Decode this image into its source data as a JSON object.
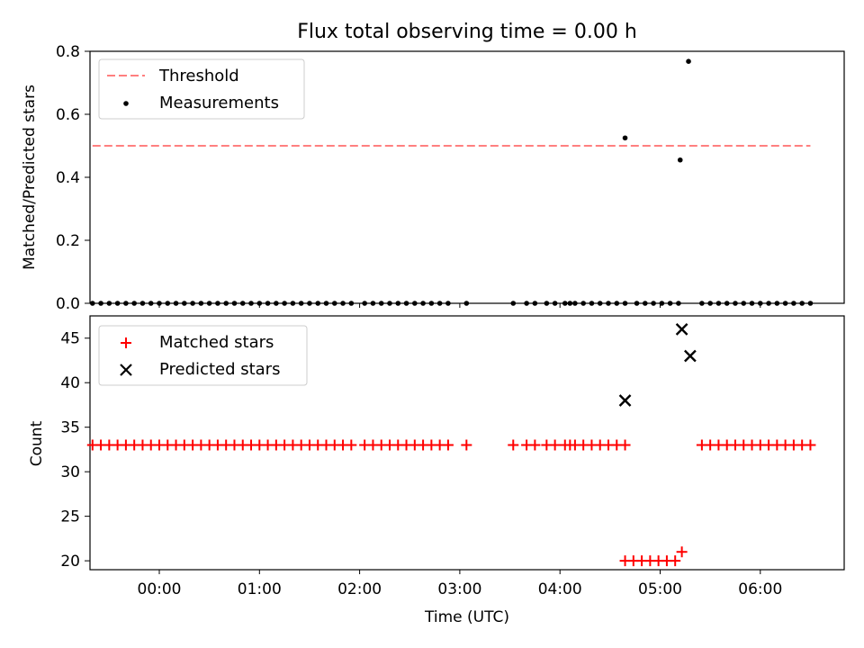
{
  "title": "Flux total observing time = 0.00 h",
  "chart_data": [
    {
      "type": "scatter",
      "ylabel": "Matched/Predicted stars",
      "xlabel": "",
      "ylim": [
        0,
        0.8
      ],
      "yticks": [
        0.0,
        0.2,
        0.4,
        0.6,
        0.8
      ],
      "ytick_labels": [
        "0.0",
        "0.2",
        "0.4",
        "0.6",
        "0.8"
      ],
      "legend_position": "top-left",
      "threshold": {
        "name": "Threshold",
        "value": 0.5,
        "x_start": "23:20",
        "x_end": "06:30",
        "color": "#ff7f7f",
        "style": "dashed"
      },
      "series": [
        {
          "name": "Measurements",
          "marker": "dot",
          "color": "#000000",
          "x": [
            "23:20",
            "23:25",
            "23:30",
            "23:35",
            "23:40",
            "23:45",
            "23:50",
            "23:55",
            "00:00",
            "00:05",
            "00:10",
            "00:15",
            "00:20",
            "00:25",
            "00:30",
            "00:35",
            "00:40",
            "00:45",
            "00:50",
            "00:55",
            "01:00",
            "01:05",
            "01:10",
            "01:15",
            "01:20",
            "01:25",
            "01:30",
            "01:35",
            "01:40",
            "01:45",
            "01:50",
            "01:55",
            "02:03",
            "02:08",
            "02:13",
            "02:18",
            "02:23",
            "02:28",
            "02:33",
            "02:38",
            "02:43",
            "02:48",
            "02:53",
            "03:04",
            "03:32",
            "03:40",
            "03:45",
            "03:52",
            "03:57",
            "04:03",
            "04:06",
            "04:09",
            "04:14",
            "04:19",
            "04:24",
            "04:29",
            "04:34",
            "04:39",
            "04:46",
            "04:51",
            "04:56",
            "05:01",
            "05:06",
            "05:11",
            "05:25",
            "05:30",
            "05:35",
            "05:40",
            "05:45",
            "05:50",
            "05:55",
            "06:00",
            "06:05",
            "06:10",
            "06:15",
            "06:20",
            "06:25",
            "06:30",
            "04:39",
            "05:12",
            "05:17"
          ],
          "y": [
            0,
            0,
            0,
            0,
            0,
            0,
            0,
            0,
            0,
            0,
            0,
            0,
            0,
            0,
            0,
            0,
            0,
            0,
            0,
            0,
            0,
            0,
            0,
            0,
            0,
            0,
            0,
            0,
            0,
            0,
            0,
            0,
            0,
            0,
            0,
            0,
            0,
            0,
            0,
            0,
            0,
            0,
            0,
            0,
            0,
            0,
            0,
            0,
            0,
            0,
            0,
            0,
            0,
            0,
            0,
            0,
            0,
            0,
            0,
            0,
            0,
            0,
            0,
            0,
            0,
            0,
            0,
            0,
            0,
            0,
            0,
            0,
            0,
            0,
            0,
            0,
            0,
            0,
            0.525,
            0.455,
            0.768
          ]
        }
      ]
    },
    {
      "type": "scatter",
      "xlabel": "Time (UTC)",
      "ylabel": "Count",
      "ylim": [
        19,
        47.5
      ],
      "yticks": [
        20,
        25,
        30,
        35,
        40,
        45
      ],
      "ytick_labels": [
        "20",
        "25",
        "30",
        "35",
        "40",
        "45"
      ],
      "xticks": [
        "00:00",
        "01:00",
        "02:00",
        "03:00",
        "04:00",
        "05:00",
        "06:00"
      ],
      "legend_position": "top-left",
      "series": [
        {
          "name": "Matched stars",
          "marker": "plus",
          "color": "#ff0000",
          "x": [
            "23:20",
            "23:25",
            "23:30",
            "23:35",
            "23:40",
            "23:45",
            "23:50",
            "23:55",
            "00:00",
            "00:05",
            "00:10",
            "00:15",
            "00:20",
            "00:25",
            "00:30",
            "00:35",
            "00:40",
            "00:45",
            "00:50",
            "00:55",
            "01:00",
            "01:05",
            "01:10",
            "01:15",
            "01:20",
            "01:25",
            "01:30",
            "01:35",
            "01:40",
            "01:45",
            "01:50",
            "01:55",
            "02:03",
            "02:08",
            "02:13",
            "02:18",
            "02:23",
            "02:28",
            "02:33",
            "02:38",
            "02:43",
            "02:48",
            "02:53",
            "03:04",
            "03:32",
            "03:40",
            "03:45",
            "03:52",
            "03:57",
            "04:03",
            "04:06",
            "04:09",
            "04:14",
            "04:19",
            "04:24",
            "04:29",
            "04:34",
            "04:39",
            "04:39",
            "04:44",
            "04:49",
            "04:54",
            "04:59",
            "05:04",
            "05:09",
            "05:13",
            "05:25",
            "05:30",
            "05:35",
            "05:40",
            "05:45",
            "05:50",
            "05:55",
            "06:00",
            "06:05",
            "06:10",
            "06:15",
            "06:20",
            "06:25",
            "06:30"
          ],
          "y": [
            33,
            33,
            33,
            33,
            33,
            33,
            33,
            33,
            33,
            33,
            33,
            33,
            33,
            33,
            33,
            33,
            33,
            33,
            33,
            33,
            33,
            33,
            33,
            33,
            33,
            33,
            33,
            33,
            33,
            33,
            33,
            33,
            33,
            33,
            33,
            33,
            33,
            33,
            33,
            33,
            33,
            33,
            33,
            33,
            33,
            33,
            33,
            33,
            33,
            33,
            33,
            33,
            33,
            33,
            33,
            33,
            33,
            33,
            20,
            20,
            20,
            20,
            20,
            20,
            20,
            21,
            33,
            33,
            33,
            33,
            33,
            33,
            33,
            33,
            33,
            33,
            33,
            33,
            33,
            33
          ]
        },
        {
          "name": "Predicted stars",
          "marker": "x",
          "color": "#000000",
          "x": [
            "04:39",
            "05:13",
            "05:18"
          ],
          "y": [
            38,
            46,
            43
          ]
        }
      ]
    }
  ]
}
